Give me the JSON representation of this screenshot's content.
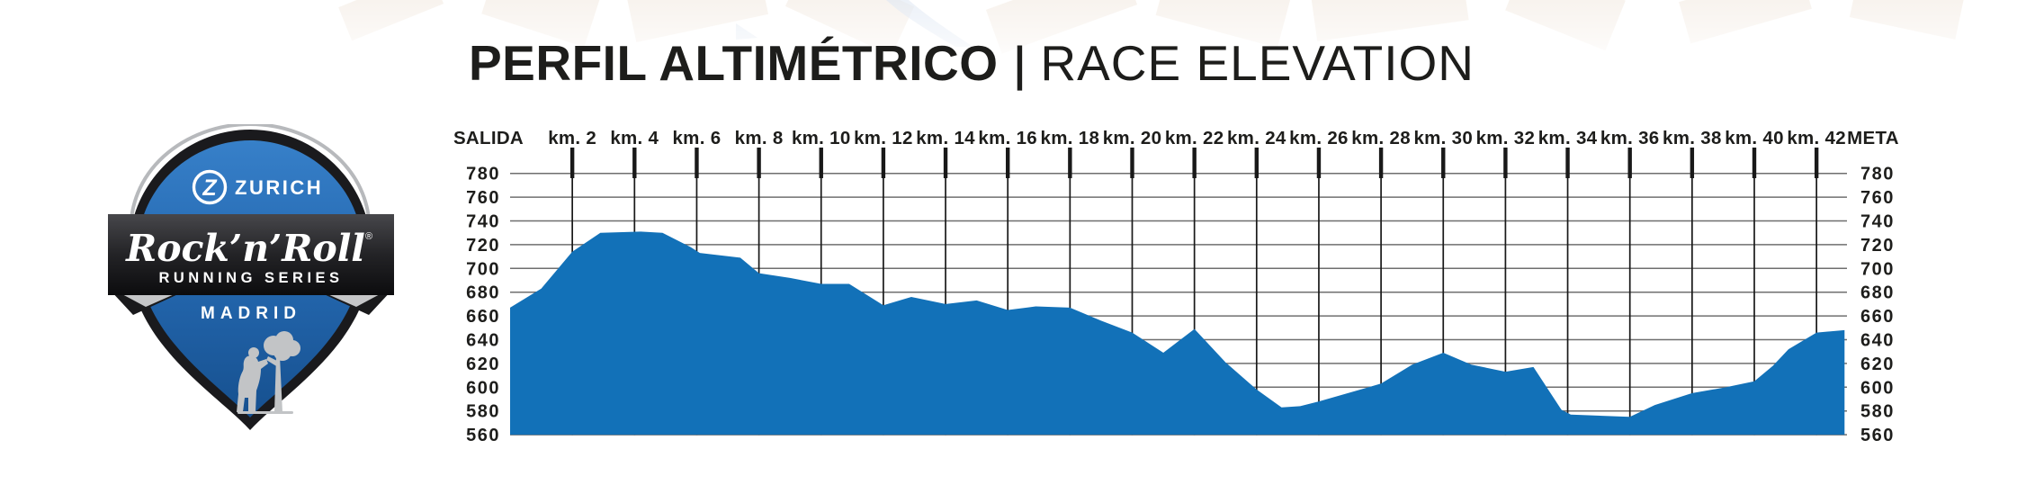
{
  "title": {
    "primary": "PERFIL ALTIMÉTRICO",
    "separator": "|",
    "secondary": "RACE ELEVATION"
  },
  "logo": {
    "sponsor_initial": "Z",
    "sponsor": "ZURICH",
    "brand_script": "Rock’n’Roll",
    "brand_registered": "®",
    "brand_sub": "RUNNING SERIES",
    "city": "MADRID",
    "emblem": "bear-and-madrono-tree",
    "colors": {
      "blue": "#2570b9",
      "dark": "#1a1a1d",
      "silver": "#c5c6c8"
    }
  },
  "chart_data": {
    "type": "area",
    "title": "PERFIL ALTIMÉTRICO | RACE ELEVATION",
    "x_axis": {
      "position": "top",
      "unit": "km",
      "start_label": "SALIDA",
      "end_label": "META",
      "tick_km": [
        2,
        4,
        6,
        8,
        10,
        12,
        14,
        16,
        18,
        20,
        22,
        24,
        26,
        28,
        30,
        32,
        34,
        36,
        38,
        40,
        42
      ],
      "tick_labels": [
        "km. 2",
        "km. 4",
        "km. 6",
        "km. 8",
        "km. 10",
        "km. 12",
        "km. 14",
        "km. 16",
        "km. 18",
        "km. 20",
        "km. 22",
        "km. 24",
        "km. 26",
        "km. 28",
        "km. 30",
        "km. 32",
        "km. 34",
        "km. 36",
        "km. 38",
        "km. 40",
        "km. 42"
      ],
      "labels_full": [
        "SALIDA",
        "km. 2",
        "km. 4",
        "km. 6",
        "km. 8",
        "km. 10",
        "km. 12",
        "km. 14",
        "km. 16",
        "km. 18",
        "km. 20",
        "km. 22",
        "km. 24",
        "km. 26",
        "km. 28",
        "km. 30",
        "km. 32",
        "km. 34",
        "km. 36",
        "km. 38",
        "km. 40",
        "km. 42",
        "META"
      ]
    },
    "y_axis": {
      "unit": "m",
      "min": 560,
      "max": 780,
      "step": 20,
      "tick_labels": [
        780,
        760,
        740,
        720,
        700,
        680,
        660,
        640,
        620,
        600,
        580,
        560
      ],
      "sides": [
        "left",
        "right"
      ]
    },
    "grid": {
      "horizontal": true,
      "vertical": true,
      "horizontal_color": "#6f6f6f",
      "vertical_color": "#191919"
    },
    "series": [
      {
        "name": "elevation",
        "type": "area",
        "color": "#1271b8",
        "points_km_m": [
          [
            0,
            667
          ],
          [
            1,
            683
          ],
          [
            2,
            714
          ],
          [
            2.9,
            730
          ],
          [
            4.2,
            731
          ],
          [
            4.9,
            730
          ],
          [
            5.8,
            718
          ],
          [
            6.1,
            713
          ],
          [
            7.4,
            709
          ],
          [
            8,
            696
          ],
          [
            9,
            692
          ],
          [
            10,
            687
          ],
          [
            10.9,
            687
          ],
          [
            12,
            669
          ],
          [
            12.9,
            676
          ],
          [
            14,
            670
          ],
          [
            15,
            673
          ],
          [
            16,
            665
          ],
          [
            16.9,
            668
          ],
          [
            18,
            667
          ],
          [
            19,
            656
          ],
          [
            20,
            646
          ],
          [
            21,
            629
          ],
          [
            22,
            649
          ],
          [
            23,
            621
          ],
          [
            24,
            598
          ],
          [
            24.8,
            583
          ],
          [
            25.4,
            584
          ],
          [
            26,
            588
          ],
          [
            28,
            603
          ],
          [
            29,
            619
          ],
          [
            30,
            629
          ],
          [
            30.9,
            619
          ],
          [
            32,
            613
          ],
          [
            32.9,
            617
          ],
          [
            33.8,
            581
          ],
          [
            34.1,
            577
          ],
          [
            36,
            575
          ],
          [
            36.8,
            585
          ],
          [
            38,
            595
          ],
          [
            39.1,
            600
          ],
          [
            40,
            605
          ],
          [
            40.6,
            618
          ],
          [
            41.1,
            632
          ],
          [
            42,
            646
          ],
          [
            42.9,
            648
          ]
        ]
      }
    ]
  }
}
